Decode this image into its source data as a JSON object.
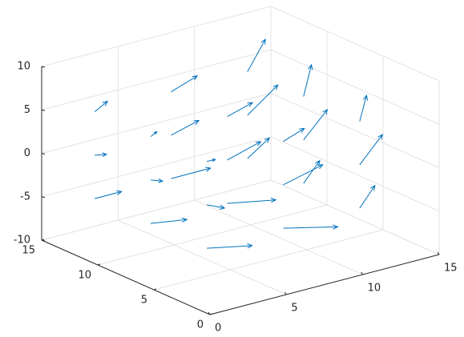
{
  "chart_data": {
    "type": "quiver3",
    "color": "#0072bd",
    "grid": true,
    "xlim": [
      0,
      15
    ],
    "xticks": [
      0,
      5,
      10,
      15
    ],
    "ylim": [
      0,
      15
    ],
    "yticks": [
      0,
      5,
      10,
      15
    ],
    "zlim": [
      -10,
      10
    ],
    "zticks": [
      -10,
      -5,
      0,
      5,
      10
    ],
    "x": [
      2,
      2,
      2,
      2,
      2,
      2,
      2,
      2,
      2,
      7,
      7,
      7,
      7,
      7,
      7,
      7,
      7,
      7,
      12,
      12,
      12,
      12,
      12,
      12,
      12,
      12,
      12
    ],
    "y": [
      3,
      3,
      3,
      8,
      8,
      8,
      13,
      13,
      13,
      3,
      3,
      3,
      8,
      8,
      8,
      13,
      13,
      13,
      3,
      3,
      3,
      8,
      8,
      8,
      13,
      13,
      13
    ],
    "z": [
      -5,
      0,
      5,
      -5,
      0,
      5,
      -5,
      0,
      5,
      -5,
      0,
      5,
      -5,
      0,
      5,
      -5,
      0,
      5,
      -5,
      0,
      5,
      -5,
      0,
      5,
      -5,
      0,
      5
    ],
    "u": [
      1.2,
      0.6,
      0.4,
      1.0,
      0.5,
      0.4,
      0.8,
      0.5,
      0.6,
      1.4,
      1.1,
      0.7,
      1.3,
      1.0,
      0.9,
      1.1,
      0.9,
      1.0,
      0.6,
      0.9,
      0.5,
      0.7,
      1.0,
      0.6,
      0.8,
      1.2,
      0.9
    ],
    "v": [
      -0.2,
      0.1,
      0.2,
      -0.1,
      0.2,
      0.3,
      0.0,
      0.2,
      0.3,
      -0.3,
      -0.1,
      0.1,
      -0.2,
      0.0,
      0.2,
      -0.1,
      0.1,
      0.3,
      0.2,
      0.3,
      0.4,
      0.3,
      0.4,
      0.5,
      0.2,
      0.4,
      0.5
    ],
    "w": [
      -0.3,
      -0.5,
      -0.2,
      -0.2,
      -0.4,
      -0.1,
      0.0,
      -0.3,
      0.1,
      -0.4,
      0.6,
      0.3,
      -0.3,
      0.5,
      0.2,
      0.1,
      0.3,
      0.2,
      0.8,
      1.0,
      0.9,
      0.7,
      0.9,
      1.1,
      0.6,
      0.8,
      1.0
    ]
  }
}
